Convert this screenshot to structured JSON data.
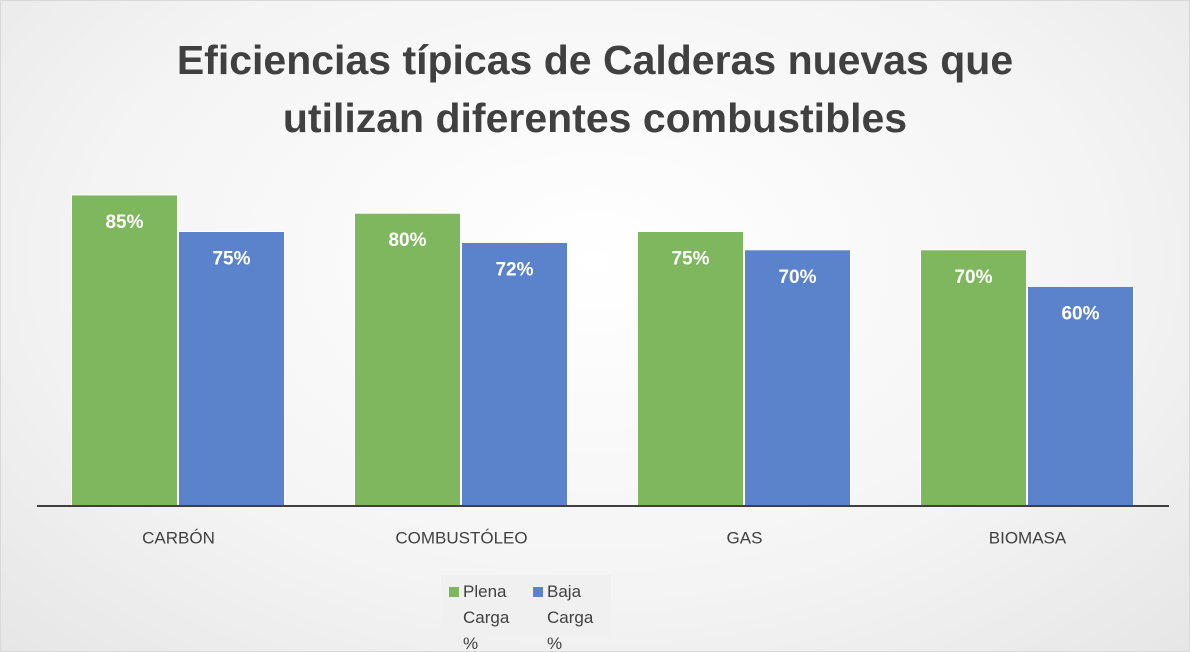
{
  "chart_data": {
    "type": "bar",
    "title": "Eficiencias típicas de Calderas nuevas que utilizan diferentes combustibles",
    "categories": [
      "CARBÓN",
      "COMBUSTÓLEO",
      "GAS",
      "BIOMASA"
    ],
    "series": [
      {
        "name": "Plena Carga %",
        "color": "#7fb75e",
        "values": [
          85,
          80,
          75,
          70
        ],
        "value_labels": [
          "85%",
          "80%",
          "75%",
          "70%"
        ]
      },
      {
        "name": "Baja Carga %",
        "color": "#5b83cb",
        "values": [
          75,
          72,
          70,
          60
        ],
        "value_labels": [
          "75%",
          "72%",
          "70%",
          "60%"
        ]
      }
    ],
    "ylim": [
      0,
      100
    ],
    "legend": "bottom"
  }
}
